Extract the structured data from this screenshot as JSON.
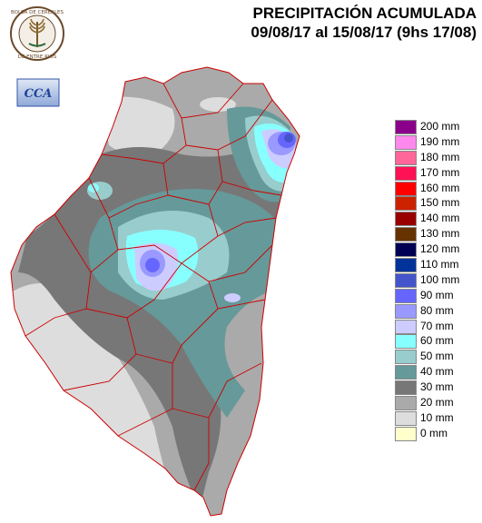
{
  "title": {
    "line1": "PRECIPITACIÓN ACUMULADA",
    "line2": "09/08/17 al 15/08/17 (9hs 17/08)"
  },
  "logos": {
    "seal_text": "BOLSA DE CEREALES DE ENTRE RIOS",
    "cca_text": "CCA"
  },
  "legend": [
    {
      "label": "200 mm",
      "color": "#8b008b"
    },
    {
      "label": "190 mm",
      "color": "#ff88ee"
    },
    {
      "label": "180 mm",
      "color": "#ff6699"
    },
    {
      "label": "170 mm",
      "color": "#ff1155"
    },
    {
      "label": "160 mm",
      "color": "#ff0000"
    },
    {
      "label": "150 mm",
      "color": "#cc2200"
    },
    {
      "label": "140 mm",
      "color": "#990000"
    },
    {
      "label": "130 mm",
      "color": "#663300"
    },
    {
      "label": "120 mm",
      "color": "#000055"
    },
    {
      "label": "110 mm",
      "color": "#003399"
    },
    {
      "label": "100 mm",
      "color": "#4455cc"
    },
    {
      "label": "90 mm",
      "color": "#6666ff"
    },
    {
      "label": "80 mm",
      "color": "#9999ff"
    },
    {
      "label": "70 mm",
      "color": "#ccccff"
    },
    {
      "label": "60 mm",
      "color": "#88ffff"
    },
    {
      "label": "50 mm",
      "color": "#99cccc"
    },
    {
      "label": "40 mm",
      "color": "#669999"
    },
    {
      "label": "30 mm",
      "color": "#777777"
    },
    {
      "label": "20 mm",
      "color": "#aaaaaa"
    },
    {
      "label": "10 mm",
      "color": "#dddddd"
    },
    {
      "label": "0 mm",
      "color": "#ffffcc"
    }
  ]
}
